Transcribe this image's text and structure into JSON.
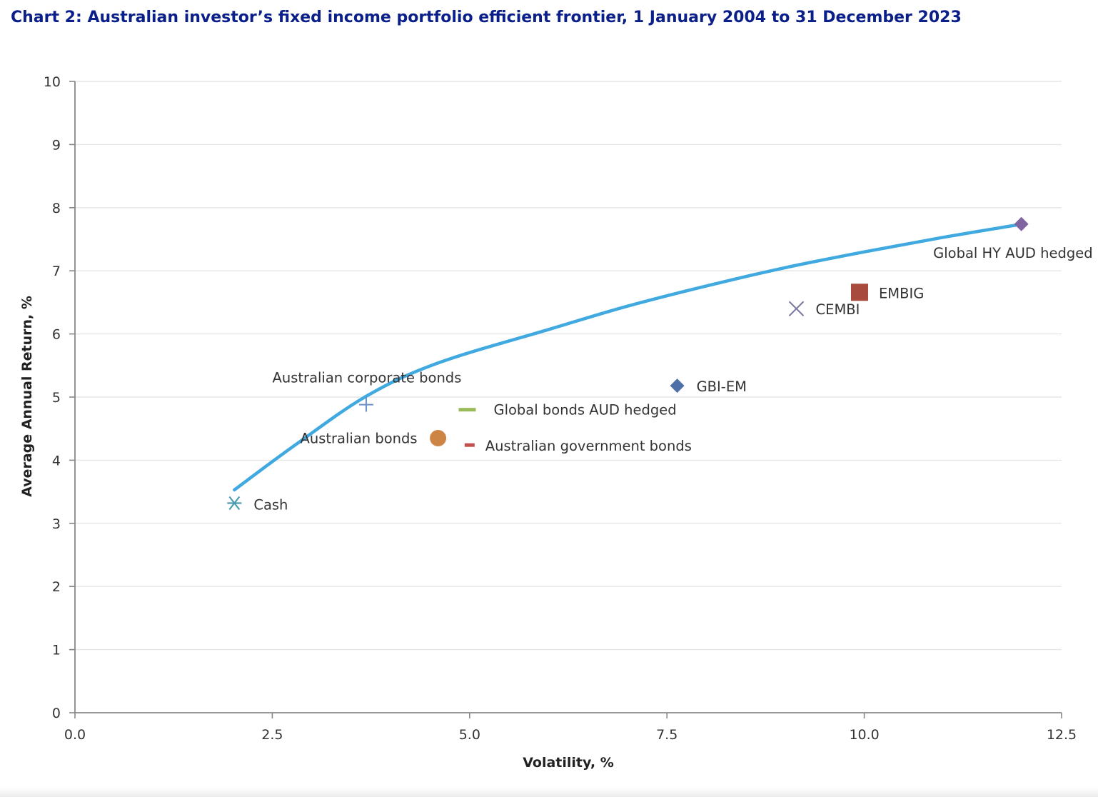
{
  "title": "Chart 2: Australian investor’s fixed income portfolio efficient frontier, 1 January 2004 to 31 December 2023",
  "chart_data": {
    "type": "scatter",
    "xlabel": "Volatility, %",
    "ylabel": "Average Annual Return, %",
    "xlim": [
      0,
      12.5
    ],
    "ylim": [
      0,
      10
    ],
    "x_ticks": [
      "0.0",
      "2.5",
      "5.0",
      "7.5",
      "10.0",
      "12.5"
    ],
    "y_ticks": [
      "0",
      "1",
      "2",
      "3",
      "4",
      "5",
      "6",
      "7",
      "8",
      "9",
      "10"
    ],
    "grid": "horizontal",
    "frontier": {
      "name": "Efficient frontier",
      "color": "#3fa9e0",
      "x": [
        2.02,
        2.8,
        3.7,
        4.6,
        6.0,
        7.0,
        8.0,
        9.0,
        10.0,
        11.0,
        12.0
      ],
      "y": [
        3.53,
        4.25,
        5.02,
        5.54,
        6.07,
        6.44,
        6.76,
        7.05,
        7.3,
        7.53,
        7.74
      ]
    },
    "points": [
      {
        "label": "Cash",
        "x": 2.02,
        "y": 3.32,
        "marker": "asterisk",
        "color": "#4a9bb0"
      },
      {
        "label": "Australian corporate bonds",
        "x": 3.69,
        "y": 4.88,
        "marker": "plus",
        "color": "#6a8fc9"
      },
      {
        "label": "Australian bonds",
        "x": 4.6,
        "y": 4.35,
        "marker": "circle",
        "color": "#cd8545"
      },
      {
        "label": "Global bonds AUD hedged",
        "x": 4.97,
        "y": 4.8,
        "marker": "dash",
        "color": "#9bbb59"
      },
      {
        "label": "Australian government bonds",
        "x": 5.0,
        "y": 4.24,
        "marker": "dash",
        "color": "#c0504d"
      },
      {
        "label": "GBI-EM",
        "x": 7.63,
        "y": 5.18,
        "marker": "diamond",
        "color": "#4f6fa8"
      },
      {
        "label": "CEMBI",
        "x": 9.14,
        "y": 6.4,
        "marker": "x",
        "color": "#7a7aa0"
      },
      {
        "label": "EMBIG",
        "x": 9.94,
        "y": 6.66,
        "marker": "square",
        "color": "#a84a3c"
      },
      {
        "label": "Global HY AUD hedged",
        "x": 11.99,
        "y": 7.74,
        "marker": "diamond",
        "color": "#8064a2"
      }
    ]
  }
}
